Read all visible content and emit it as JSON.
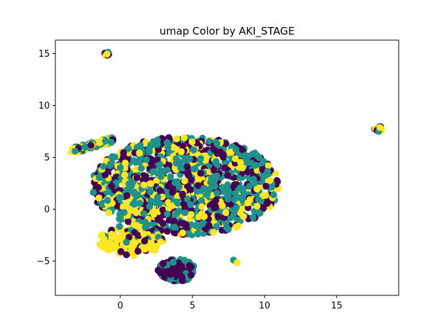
{
  "chart_data": {
    "type": "scatter",
    "title": "umap Color by AKI_STAGE",
    "xlabel": "",
    "ylabel": "",
    "xlim": [
      -4.5,
      19.3
    ],
    "ylim": [
      -8.3,
      16.3
    ],
    "xticks": [
      0,
      5,
      10,
      15
    ],
    "yticks": [
      -5,
      0,
      5,
      10,
      15
    ],
    "grid": false,
    "legend": false,
    "colors": {
      "class_a": "#440154",
      "class_b": "#21918c",
      "class_c": "#fde725",
      "axes": "#000000",
      "background": "#ffffff"
    },
    "clusters": [
      {
        "name": "main",
        "x_range": [
          -2.0,
          11.0
        ],
        "y_range": [
          -2.5,
          7.0
        ],
        "shares": [
          0.33,
          0.4,
          0.27
        ]
      },
      {
        "name": "arm-left",
        "x_range": [
          -3.4,
          -0.5
        ],
        "y_range": [
          5.5,
          7.0
        ],
        "shares": [
          0.15,
          0.35,
          0.5
        ]
      },
      {
        "name": "lower-left",
        "x_range": [
          -1.5,
          3.0
        ],
        "y_range": [
          -4.5,
          -1.5
        ],
        "shares": [
          0.1,
          0.1,
          0.8
        ]
      },
      {
        "name": "bottom-island",
        "x_range": [
          2.6,
          5.2
        ],
        "y_range": [
          -7.0,
          -4.8
        ],
        "shares": [
          0.65,
          0.35,
          0.0
        ]
      },
      {
        "name": "top-island",
        "x_range": [
          -1.1,
          -0.8
        ],
        "y_range": [
          14.8,
          15.2
        ],
        "shares": [
          0.4,
          0.3,
          0.3
        ]
      },
      {
        "name": "right-island",
        "x_range": [
          17.6,
          18.2
        ],
        "y_range": [
          7.5,
          8.0
        ],
        "shares": [
          0.4,
          0.3,
          0.3
        ]
      },
      {
        "name": "small-outlier",
        "x_range": [
          7.8,
          8.2
        ],
        "y_range": [
          -5.2,
          -4.8
        ],
        "shares": [
          0.0,
          0.5,
          0.5
        ]
      }
    ]
  }
}
